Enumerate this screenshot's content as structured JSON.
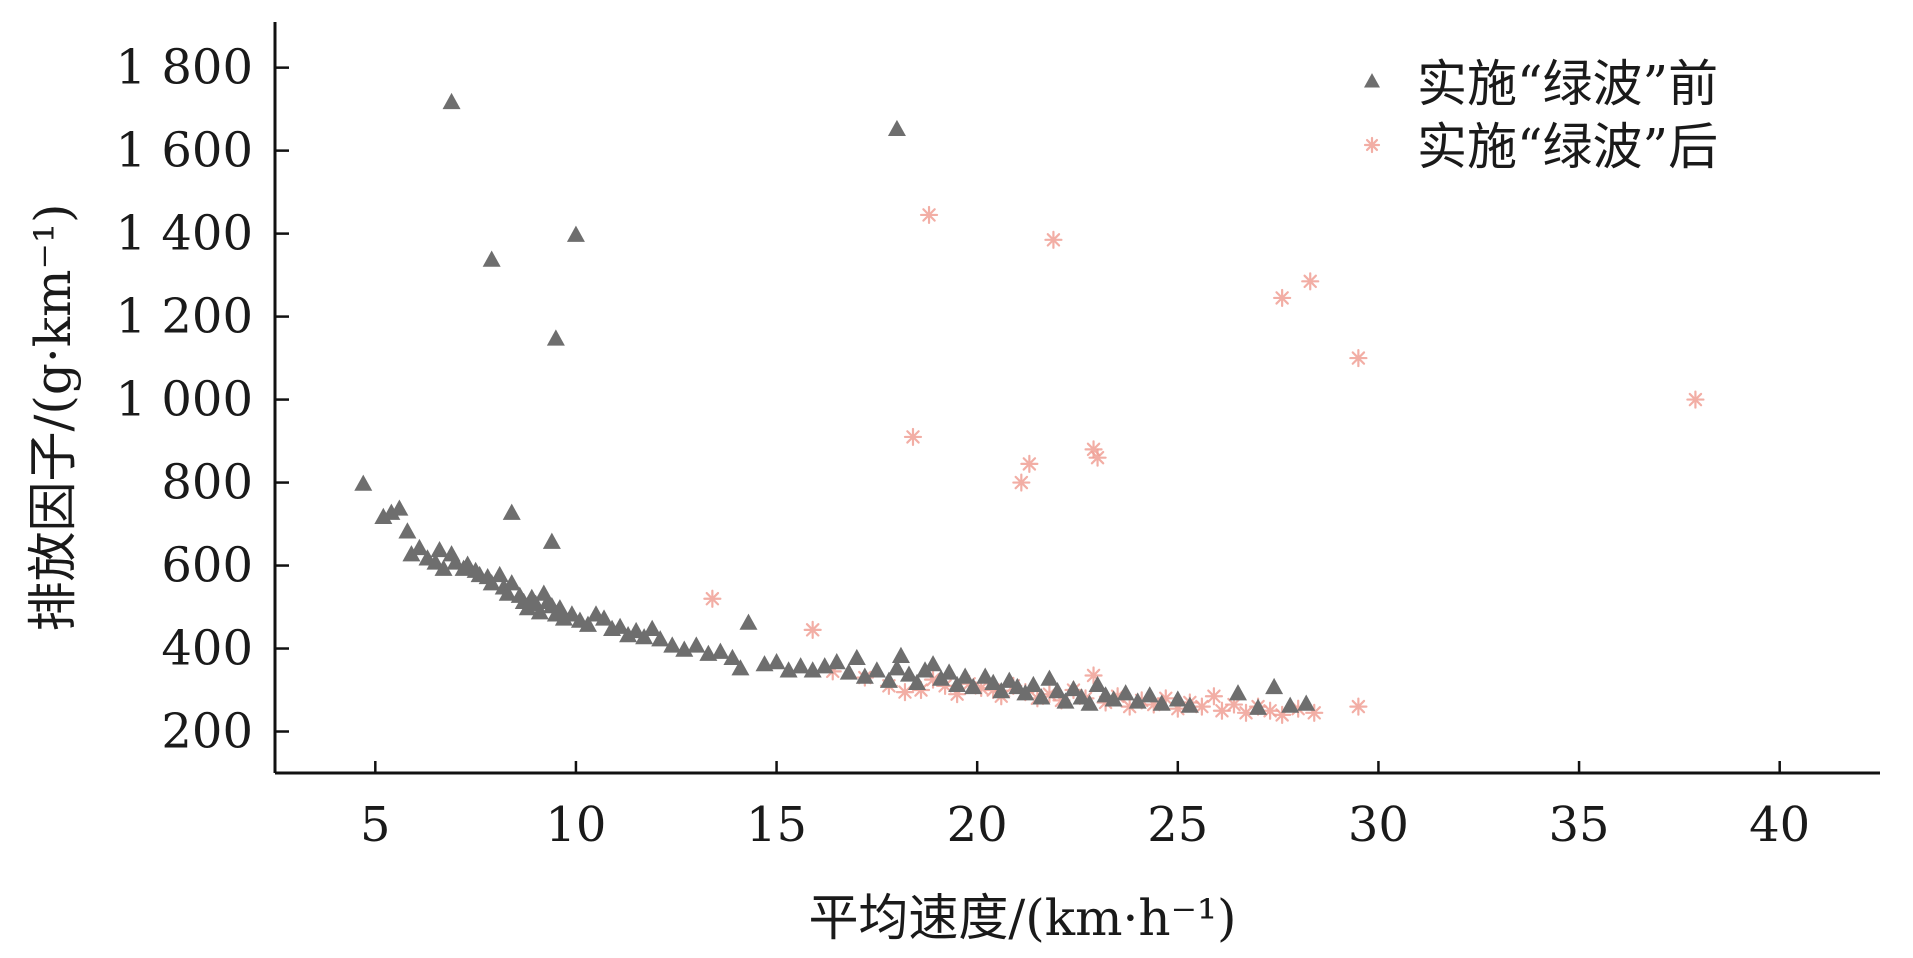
{
  "chart_data": {
    "type": "scatter",
    "title": "",
    "xlabel": "平均速度/(km·h⁻¹)",
    "ylabel": "排放因子/(g·km⁻¹)",
    "xlim": [
      2.5,
      42.5
    ],
    "ylim": [
      100,
      1910
    ],
    "x_ticks": [
      5,
      10,
      15,
      20,
      25,
      30,
      35,
      40
    ],
    "x_tick_labels": [
      "5",
      "10",
      "15",
      "20",
      "25",
      "30",
      "35",
      "40"
    ],
    "y_ticks": [
      200,
      400,
      600,
      800,
      1000,
      1200,
      1400,
      1600,
      1800
    ],
    "y_tick_labels": [
      "200",
      "400",
      "600",
      "800",
      "1 000",
      "1 200",
      "1 400",
      "1 600",
      "1 800"
    ],
    "grid": false,
    "legend_position": "top-right",
    "series": [
      {
        "name": "实施“绿波”前",
        "marker": "triangle",
        "color": "#6e6e6e",
        "points": [
          [
            4.7,
            795
          ],
          [
            5.2,
            715
          ],
          [
            5.4,
            725
          ],
          [
            5.6,
            735
          ],
          [
            5.8,
            680
          ],
          [
            5.9,
            625
          ],
          [
            6.1,
            640
          ],
          [
            6.3,
            615
          ],
          [
            6.5,
            605
          ],
          [
            6.6,
            635
          ],
          [
            6.7,
            590
          ],
          [
            6.9,
            625
          ],
          [
            7.0,
            605
          ],
          [
            7.2,
            590
          ],
          [
            7.3,
            600
          ],
          [
            7.5,
            585
          ],
          [
            7.6,
            575
          ],
          [
            7.8,
            570
          ],
          [
            7.9,
            555
          ],
          [
            8.1,
            575
          ],
          [
            8.2,
            545
          ],
          [
            8.3,
            530
          ],
          [
            8.4,
            555
          ],
          [
            8.6,
            525
          ],
          [
            8.7,
            510
          ],
          [
            8.8,
            495
          ],
          [
            8.9,
            520
          ],
          [
            9.0,
            505
          ],
          [
            9.1,
            485
          ],
          [
            9.2,
            530
          ],
          [
            9.3,
            510
          ],
          [
            9.4,
            500
          ],
          [
            9.5,
            480
          ],
          [
            9.6,
            495
          ],
          [
            9.7,
            470
          ],
          [
            9.9,
            480
          ],
          [
            10.1,
            465
          ],
          [
            10.3,
            455
          ],
          [
            10.5,
            480
          ],
          [
            10.7,
            470
          ],
          [
            10.9,
            445
          ],
          [
            11.1,
            450
          ],
          [
            11.3,
            430
          ],
          [
            11.5,
            440
          ],
          [
            11.7,
            425
          ],
          [
            11.9,
            445
          ],
          [
            12.1,
            420
          ],
          [
            12.4,
            405
          ],
          [
            12.7,
            395
          ],
          [
            13.0,
            405
          ],
          [
            13.3,
            385
          ],
          [
            13.6,
            390
          ],
          [
            13.9,
            375
          ],
          [
            14.1,
            350
          ],
          [
            14.3,
            460
          ],
          [
            14.7,
            360
          ],
          [
            15.0,
            365
          ],
          [
            15.3,
            345
          ],
          [
            15.6,
            355
          ],
          [
            15.9,
            345
          ],
          [
            16.2,
            355
          ],
          [
            16.5,
            365
          ],
          [
            16.8,
            340
          ],
          [
            17.0,
            375
          ],
          [
            17.2,
            330
          ],
          [
            17.5,
            345
          ],
          [
            17.8,
            320
          ],
          [
            18.0,
            350
          ],
          [
            18.1,
            380
          ],
          [
            18.3,
            335
          ],
          [
            18.5,
            315
          ],
          [
            18.7,
            345
          ],
          [
            18.9,
            360
          ],
          [
            19.1,
            325
          ],
          [
            19.3,
            340
          ],
          [
            19.5,
            310
          ],
          [
            19.7,
            330
          ],
          [
            19.9,
            305
          ],
          [
            20.2,
            330
          ],
          [
            20.4,
            315
          ],
          [
            20.6,
            295
          ],
          [
            20.8,
            320
          ],
          [
            21.0,
            305
          ],
          [
            21.2,
            290
          ],
          [
            21.4,
            310
          ],
          [
            21.6,
            280
          ],
          [
            21.8,
            325
          ],
          [
            22.0,
            295
          ],
          [
            22.2,
            270
          ],
          [
            22.4,
            300
          ],
          [
            22.6,
            280
          ],
          [
            22.8,
            265
          ],
          [
            23.0,
            310
          ],
          [
            23.2,
            285
          ],
          [
            23.4,
            275
          ],
          [
            23.7,
            290
          ],
          [
            24.0,
            270
          ],
          [
            24.3,
            285
          ],
          [
            24.6,
            265
          ],
          [
            25.0,
            275
          ],
          [
            25.3,
            260
          ],
          [
            26.5,
            290
          ],
          [
            27.0,
            255
          ],
          [
            27.4,
            305
          ],
          [
            27.8,
            260
          ],
          [
            28.2,
            265
          ],
          [
            6.9,
            1715
          ],
          [
            7.9,
            1335
          ],
          [
            8.4,
            725
          ],
          [
            9.4,
            655
          ],
          [
            9.5,
            1145
          ],
          [
            10.0,
            1395
          ],
          [
            18.0,
            1650
          ]
        ]
      },
      {
        "name": "实施“绿波”后",
        "marker": "asterisk",
        "color": "#f0a096",
        "points": [
          [
            13.4,
            520
          ],
          [
            15.9,
            445
          ],
          [
            16.4,
            345
          ],
          [
            17.2,
            330
          ],
          [
            17.8,
            310
          ],
          [
            18.2,
            295
          ],
          [
            18.6,
            300
          ],
          [
            18.9,
            325
          ],
          [
            19.2,
            310
          ],
          [
            19.5,
            290
          ],
          [
            19.8,
            315
          ],
          [
            20.1,
            305
          ],
          [
            20.4,
            300
          ],
          [
            20.6,
            285
          ],
          [
            20.9,
            310
          ],
          [
            21.2,
            295
          ],
          [
            21.5,
            280
          ],
          [
            21.8,
            290
          ],
          [
            22.1,
            275
          ],
          [
            22.4,
            300
          ],
          [
            22.7,
            280
          ],
          [
            22.9,
            335
          ],
          [
            23.2,
            270
          ],
          [
            23.5,
            285
          ],
          [
            23.8,
            260
          ],
          [
            24.1,
            275
          ],
          [
            24.4,
            265
          ],
          [
            24.7,
            280
          ],
          [
            25.0,
            255
          ],
          [
            25.3,
            270
          ],
          [
            25.6,
            260
          ],
          [
            25.9,
            285
          ],
          [
            26.1,
            250
          ],
          [
            26.4,
            265
          ],
          [
            26.7,
            245
          ],
          [
            27.0,
            260
          ],
          [
            27.3,
            250
          ],
          [
            27.6,
            240
          ],
          [
            28.0,
            255
          ],
          [
            28.4,
            245
          ],
          [
            29.5,
            260
          ],
          [
            18.4,
            910
          ],
          [
            18.8,
            1445
          ],
          [
            21.1,
            800
          ],
          [
            21.3,
            845
          ],
          [
            21.9,
            1385
          ],
          [
            22.9,
            880
          ],
          [
            23.0,
            860
          ],
          [
            27.6,
            1245
          ],
          [
            28.3,
            1285
          ],
          [
            29.5,
            1100
          ],
          [
            37.9,
            1000
          ]
        ]
      }
    ]
  }
}
